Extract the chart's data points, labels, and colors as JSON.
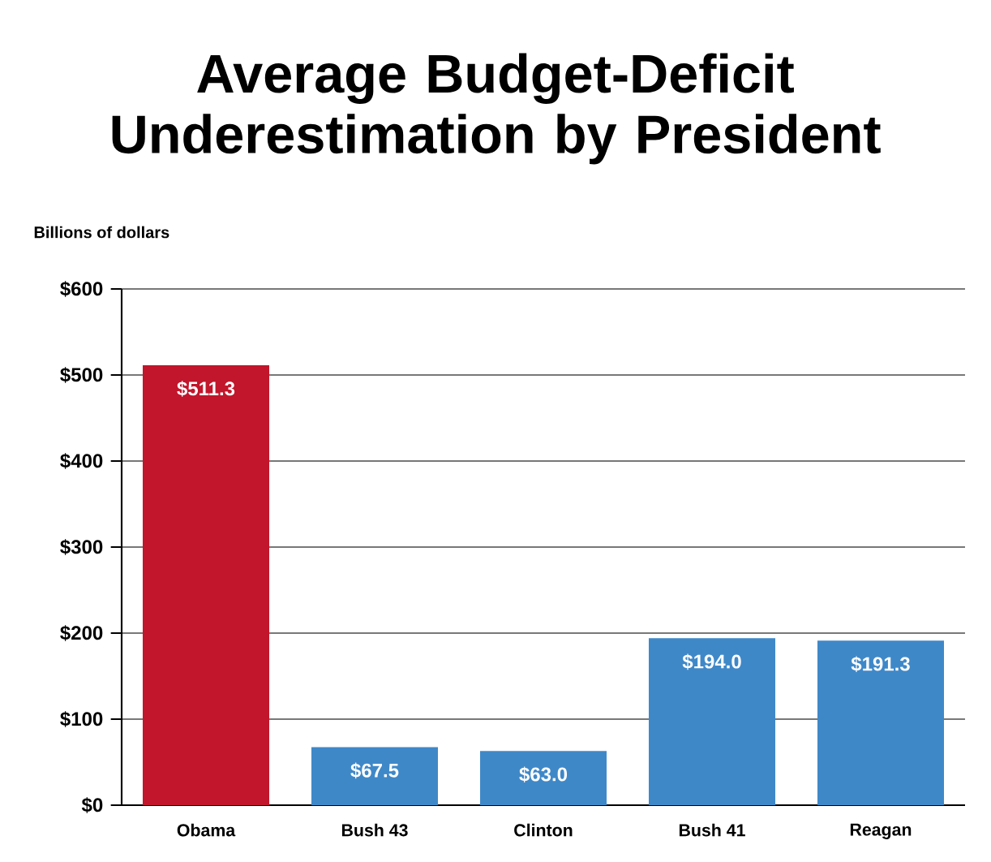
{
  "chart_data": {
    "type": "bar",
    "title": "Average Budget-Deficit Underestimation by President",
    "ylabel": "Billions of dollars",
    "categories": [
      "Obama",
      "Bush 43",
      "Clinton",
      "Bush 41",
      "Reagan"
    ],
    "values": [
      511.3,
      67.5,
      63.0,
      194.0,
      191.3
    ],
    "value_labels": [
      "$511.3",
      "$67.5",
      "$63.0",
      "$194.0",
      "$191.3"
    ],
    "colors": [
      "#c1162b",
      "#3f88c8",
      "#3f88c8",
      "#3f88c8",
      "#3f88c8"
    ],
    "ylim": [
      0,
      600
    ],
    "yticks": [
      {
        "value": 0,
        "label": "$0"
      },
      {
        "value": 100,
        "label": "$100"
      },
      {
        "value": 200,
        "label": "$200"
      },
      {
        "value": 300,
        "label": "$300"
      },
      {
        "value": 400,
        "label": "$400"
      },
      {
        "value": 500,
        "label": "$500"
      },
      {
        "value": 600,
        "label": "$600"
      }
    ],
    "grid": "y"
  }
}
